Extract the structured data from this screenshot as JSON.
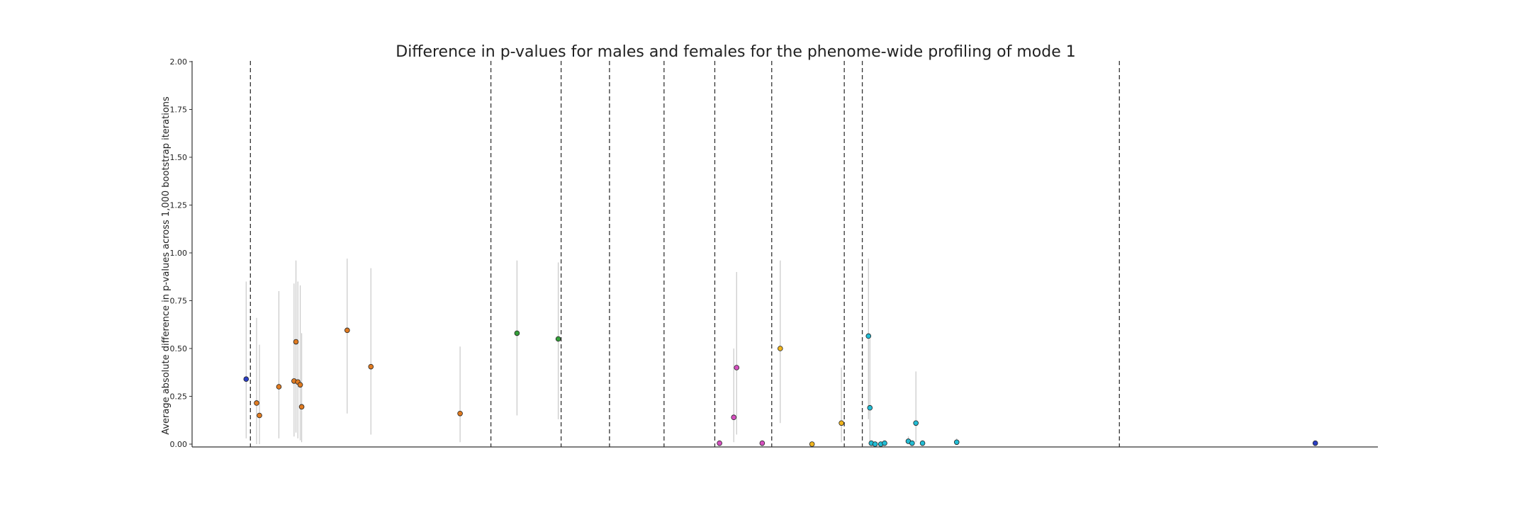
{
  "chart_data": {
    "type": "scatter",
    "title": "Difference in p-values for males and females for the phenome-wide profiling of mode 1",
    "xlabel": "",
    "ylabel": "Average absolute difference in p-values across 1,000 bootstrap iterations",
    "ylim": [
      0,
      2.0
    ],
    "xlim": [
      0,
      250
    ],
    "yticks": [
      0,
      0.25,
      0.5,
      0.75,
      1.0,
      1.25,
      1.5,
      1.75,
      2.0
    ],
    "ytick_labels": [
      "0.00",
      "0.25",
      "0.50",
      "0.75",
      "1.00",
      "1.25",
      "1.50",
      "1.75",
      "2.00"
    ],
    "grid": false,
    "legend": "none",
    "category_boundaries": [
      12.3,
      63,
      77.8,
      88,
      99.5,
      110.2,
      122.2,
      137.5,
      141.3,
      195.5
    ],
    "colors": {
      "blue": "#2b3fc4",
      "orange": "#e07b21",
      "green": "#35a03a",
      "magenta": "#d64fc0",
      "yellow": "#f0b41d",
      "cyan": "#22bcd4",
      "error_bar": "#c8c8c8",
      "separator": "#333333"
    },
    "points": [
      {
        "x": 11.4,
        "y": 0.34,
        "lo": 0.03,
        "hi": 0.85,
        "color": "blue"
      },
      {
        "x": 13.6,
        "y": 0.215,
        "lo": 0.0,
        "hi": 0.66,
        "color": "orange"
      },
      {
        "x": 14.2,
        "y": 0.15,
        "lo": 0.0,
        "hi": 0.52,
        "color": "orange"
      },
      {
        "x": 18.3,
        "y": 0.3,
        "lo": 0.03,
        "hi": 0.8,
        "color": "orange"
      },
      {
        "x": 21.5,
        "y": 0.33,
        "lo": 0.04,
        "hi": 0.84,
        "color": "orange"
      },
      {
        "x": 21.9,
        "y": 0.535,
        "lo": 0.06,
        "hi": 0.96,
        "color": "orange"
      },
      {
        "x": 22.3,
        "y": 0.325,
        "lo": 0.03,
        "hi": 0.85,
        "color": "orange"
      },
      {
        "x": 22.8,
        "y": 0.31,
        "lo": 0.02,
        "hi": 0.83,
        "color": "orange"
      },
      {
        "x": 23.1,
        "y": 0.195,
        "lo": 0.01,
        "hi": 0.58,
        "color": "orange"
      },
      {
        "x": 32.7,
        "y": 0.595,
        "lo": 0.16,
        "hi": 0.97,
        "color": "orange"
      },
      {
        "x": 37.7,
        "y": 0.405,
        "lo": 0.05,
        "hi": 0.92,
        "color": "orange"
      },
      {
        "x": 56.5,
        "y": 0.16,
        "lo": 0.01,
        "hi": 0.51,
        "color": "orange"
      },
      {
        "x": 68.5,
        "y": 0.58,
        "lo": 0.15,
        "hi": 0.96,
        "color": "green"
      },
      {
        "x": 77.2,
        "y": 0.55,
        "lo": 0.13,
        "hi": 0.95,
        "color": "green"
      },
      {
        "x": 111.2,
        "y": 0.005,
        "lo": 0.0,
        "hi": 0.02,
        "color": "magenta"
      },
      {
        "x": 114.2,
        "y": 0.14,
        "lo": 0.01,
        "hi": 0.5,
        "color": "magenta"
      },
      {
        "x": 114.8,
        "y": 0.4,
        "lo": 0.05,
        "hi": 0.9,
        "color": "magenta"
      },
      {
        "x": 120.2,
        "y": 0.005,
        "lo": 0.0,
        "hi": 0.02,
        "color": "magenta"
      },
      {
        "x": 124.0,
        "y": 0.5,
        "lo": 0.11,
        "hi": 0.96,
        "color": "yellow"
      },
      {
        "x": 130.7,
        "y": 0.0,
        "lo": 0.0,
        "hi": 0.01,
        "color": "yellow"
      },
      {
        "x": 136.9,
        "y": 0.11,
        "lo": 0.01,
        "hi": 0.4,
        "color": "yellow"
      },
      {
        "x": 142.6,
        "y": 0.565,
        "lo": 0.13,
        "hi": 0.97,
        "color": "cyan"
      },
      {
        "x": 142.9,
        "y": 0.19,
        "lo": 0.01,
        "hi": 0.55,
        "color": "cyan"
      },
      {
        "x": 143.2,
        "y": 0.005,
        "lo": 0.0,
        "hi": 0.02,
        "color": "cyan"
      },
      {
        "x": 144.0,
        "y": 0.0,
        "lo": 0.0,
        "hi": 0.01,
        "color": "cyan"
      },
      {
        "x": 145.2,
        "y": 0.0,
        "lo": 0.0,
        "hi": 0.01,
        "color": "cyan"
      },
      {
        "x": 146.0,
        "y": 0.005,
        "lo": 0.0,
        "hi": 0.02,
        "color": "cyan"
      },
      {
        "x": 151.0,
        "y": 0.015,
        "lo": 0.0,
        "hi": 0.04,
        "color": "cyan"
      },
      {
        "x": 151.8,
        "y": 0.005,
        "lo": 0.0,
        "hi": 0.02,
        "color": "cyan"
      },
      {
        "x": 152.6,
        "y": 0.11,
        "lo": 0.01,
        "hi": 0.38,
        "color": "cyan"
      },
      {
        "x": 154.0,
        "y": 0.005,
        "lo": 0.0,
        "hi": 0.02,
        "color": "cyan"
      },
      {
        "x": 161.2,
        "y": 0.01,
        "lo": 0.0,
        "hi": 0.03,
        "color": "cyan"
      },
      {
        "x": 236.8,
        "y": 0.005,
        "lo": 0.0,
        "hi": 0.01,
        "color": "blue"
      }
    ]
  }
}
